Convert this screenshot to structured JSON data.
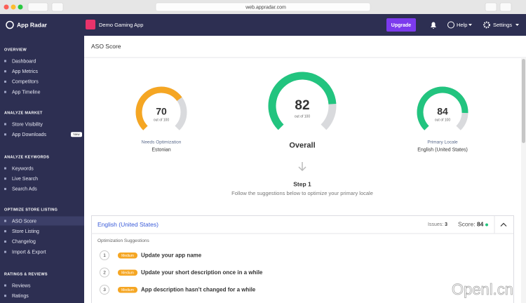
{
  "browser": {
    "url": "web.appradar.com"
  },
  "sidebar": {
    "logo": "App Radar",
    "sections": [
      {
        "title": "OVERVIEW",
        "items": [
          "Dashboard",
          "App Metrics",
          "Competitors",
          "App Timeline"
        ]
      },
      {
        "title": "ANALYZE MARKET",
        "items": [
          "Store Visibility",
          "App Downloads"
        ]
      },
      {
        "title": "ANALYZE KEYWORDS",
        "items": [
          "Keywords",
          "Live Search",
          "Search Ads"
        ]
      },
      {
        "title": "OPTIMIZE STORE LISTING",
        "items": [
          "ASO Score",
          "Store Listing",
          "Changelog",
          "Import & Export"
        ]
      },
      {
        "title": "RATINGS & REVIEWS",
        "items": [
          "Reviews",
          "Ratings"
        ]
      }
    ],
    "badge": "New"
  },
  "header": {
    "app": "Demo Gaming App",
    "upgrade": "Upgrade",
    "help": "Help",
    "settings": "Settings"
  },
  "page": {
    "title": "ASO Score"
  },
  "gauges": [
    {
      "score": 70,
      "max": 100,
      "max_label": "out of 100",
      "status": "Needs Optimization",
      "locale": "Estonian",
      "color": "#f5a623"
    },
    {
      "score": 82,
      "max": 100,
      "max_label": "out of 100",
      "label": "Overall",
      "color": "#22c47f"
    },
    {
      "score": 84,
      "max": 100,
      "max_label": "out of 100",
      "status": "Primary Locale",
      "locale": "English (United States)",
      "color": "#22c47f"
    }
  ],
  "step": {
    "title": "Step 1",
    "text": "Follow the suggestions below to optimize your primary locale"
  },
  "locale_card": {
    "locale": "English (United States)",
    "issues_label": "Issues:",
    "issues": 3,
    "score_label": "Score:",
    "score": 84,
    "section": "Optimization Suggestions",
    "suggestions": [
      {
        "number": 1,
        "priority": "Medium",
        "text": "Update your app name"
      },
      {
        "number": 2,
        "priority": "Medium",
        "text": "Update your short description once in a while"
      },
      {
        "number": 3,
        "priority": "Medium",
        "text": "App description hasn't changed for a while"
      }
    ]
  },
  "watermark": "Openl.cn"
}
